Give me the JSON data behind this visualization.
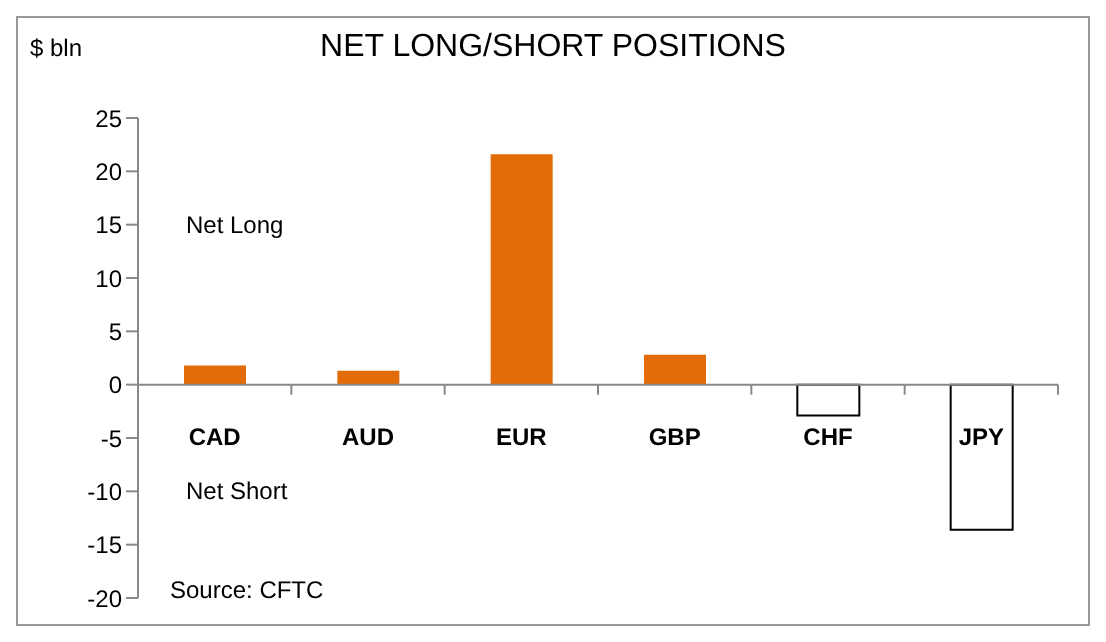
{
  "chart_data": {
    "type": "bar",
    "title": "NET LONG/SHORT POSITIONS",
    "ylabel": "$ bln",
    "categories": [
      "CAD",
      "AUD",
      "EUR",
      "GBP",
      "CHF",
      "JPY"
    ],
    "values": [
      1.8,
      1.3,
      21.6,
      2.8,
      -2.9,
      -13.6
    ],
    "colors": [
      "#e36c09",
      "#e36c09",
      "#e36c09",
      "#e36c09",
      "#ffffff",
      "#ffffff"
    ],
    "ylim": [
      -20,
      25
    ],
    "yticks": [
      -20,
      -15,
      -10,
      -5,
      0,
      5,
      10,
      15,
      20,
      25
    ],
    "annotations": [
      "Net Long",
      "Net Short",
      "Source: CFTC"
    ],
    "grid": false,
    "legend": false
  }
}
